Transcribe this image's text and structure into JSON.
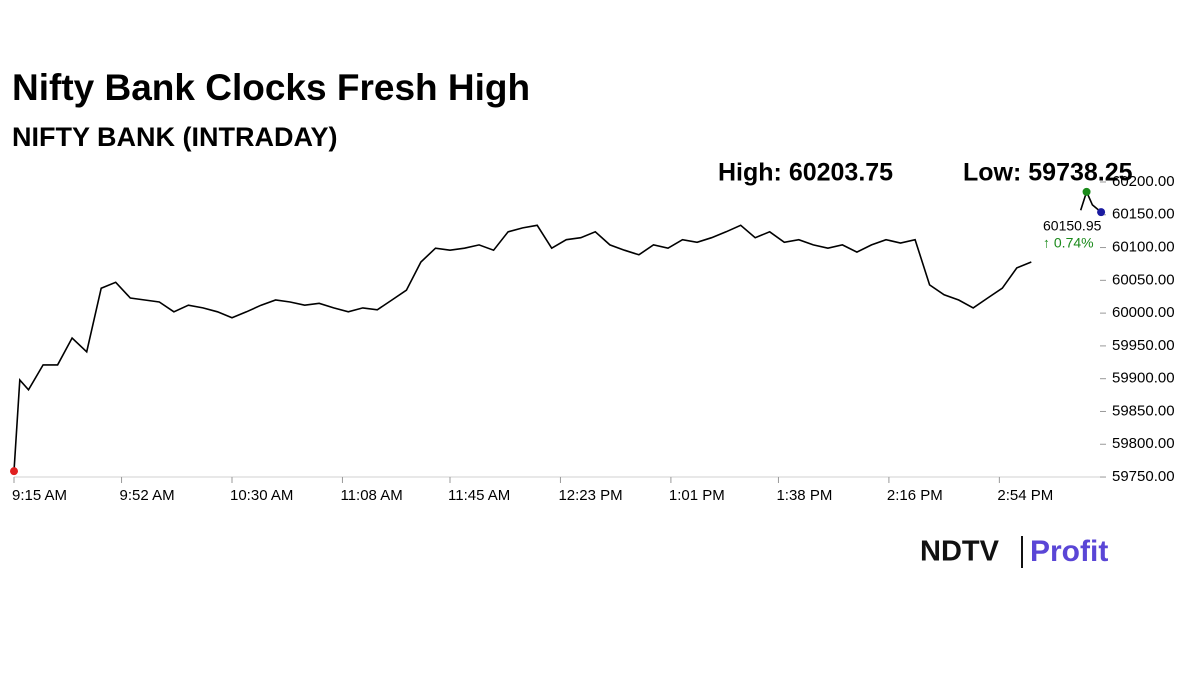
{
  "chart_data": {
    "type": "line",
    "title": "Nifty Bank Clocks Fresh High",
    "subtitle": "NIFTY BANK (INTRADAY)",
    "annotations": {
      "high": "High: 60203.75",
      "low": "Low: 59738.25",
      "last": "60150.95",
      "change": "↑ 0.74%"
    },
    "x": [
      "9:15 AM",
      "9:17 AM",
      "9:20 AM",
      "9:25 AM",
      "9:30 AM",
      "9:35 AM",
      "9:40 AM",
      "9:45 AM",
      "9:50 AM",
      "9:55 AM",
      "10:00 AM",
      "10:05 AM",
      "10:10 AM",
      "10:15 AM",
      "10:20 AM",
      "10:25 AM",
      "10:30 AM",
      "10:35 AM",
      "10:40 AM",
      "10:45 AM",
      "10:50 AM",
      "10:55 AM",
      "11:00 AM",
      "11:05 AM",
      "11:10 AM",
      "11:15 AM",
      "11:20 AM",
      "11:25 AM",
      "11:30 AM",
      "11:35 AM",
      "11:40 AM",
      "11:45 AM",
      "11:50 AM",
      "11:55 AM",
      "12:00 PM",
      "12:05 PM",
      "12:10 PM",
      "12:15 PM",
      "12:20 PM",
      "12:25 PM",
      "12:30 PM",
      "12:35 PM",
      "12:40 PM",
      "12:45 PM",
      "12:50 PM",
      "12:55 PM",
      "1:00 PM",
      "1:05 PM",
      "1:10 PM",
      "1:15 PM",
      "1:20 PM",
      "1:25 PM",
      "1:30 PM",
      "1:35 PM",
      "1:40 PM",
      "1:45 PM",
      "1:50 PM",
      "1:55 PM",
      "2:00 PM",
      "2:05 PM",
      "2:10 PM",
      "2:15 PM",
      "2:20 PM",
      "2:25 PM",
      "2:30 PM",
      "2:35 PM",
      "2:40 PM",
      "2:45 PM",
      "2:50 PM",
      "2:55 PM",
      "3:00 PM",
      "3:05 PM",
      "3:15 PM",
      "3:22 PM",
      "3:24 PM",
      "3:26 PM",
      "3:29 PM"
    ],
    "series": [
      {
        "name": "NIFTY BANK",
        "color": "#000000",
        "values": [
          59759,
          59898,
          59883,
          59921,
          59921,
          59962,
          59941,
          60038,
          60047,
          60023,
          60020,
          60017,
          60002,
          60012,
          60008,
          60002,
          59993,
          60002,
          60012,
          60020,
          60017,
          60012,
          60015,
          60008,
          60002,
          60008,
          60005,
          60020,
          60035,
          60078,
          60099,
          60096,
          60099,
          60104,
          60096,
          60124,
          60130,
          60134,
          60099,
          60112,
          60115,
          60124,
          60104,
          60096,
          60089,
          60104,
          60099,
          60112,
          60108,
          60115,
          60124,
          60134,
          60115,
          60124,
          60108,
          60112,
          60104,
          60099,
          60104,
          60093,
          60104,
          60112,
          60107,
          60112,
          60043,
          60028,
          60020,
          60008,
          60023,
          60038,
          60069,
          60078,
          null,
          60157,
          60185,
          60165,
          60154
        ]
      }
    ],
    "marker_colors": {
      "first": "#e02020",
      "high": "#1a8a1a",
      "last": "#1a1aa0"
    },
    "change_color": "#1a8a1a",
    "xlim": [
      "9:15 AM",
      "3:30 PM"
    ],
    "xticks": [
      "9:15 AM",
      "9:52 AM",
      "10:30 AM",
      "11:08 AM",
      "11:45 AM",
      "12:23 PM",
      "1:01 PM",
      "1:38 PM",
      "2:16 PM",
      "2:54 PM"
    ],
    "ylim": [
      59740,
      60205
    ],
    "yticks": [
      {
        "value": 59750,
        "label": "59750.00"
      },
      {
        "value": 59800,
        "label": "59800.00"
      },
      {
        "value": 59850,
        "label": "59850.00"
      },
      {
        "value": 59900,
        "label": "59900.00"
      },
      {
        "value": 59950,
        "label": "59950.00"
      },
      {
        "value": 60000,
        "label": "60000.00"
      },
      {
        "value": 60050,
        "label": "60050.00"
      },
      {
        "value": 60100,
        "label": "60100.00"
      },
      {
        "value": 60150,
        "label": "60150.00"
      },
      {
        "value": 60200,
        "label": "60200.00"
      }
    ]
  },
  "brand": {
    "left": "NDTV",
    "right": "Profit"
  }
}
